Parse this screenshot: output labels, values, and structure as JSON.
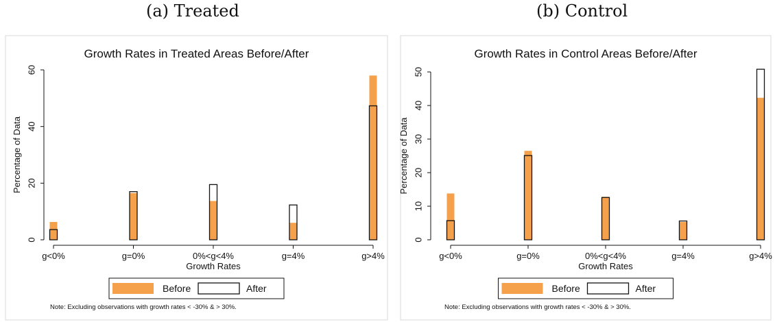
{
  "captions": [
    "(a) Treated",
    "(b) Control"
  ],
  "colors": {
    "before": "#f5a04a",
    "after_outline": "#111111",
    "panel_border": "#dadada",
    "axis": "#111111"
  },
  "chart_data": [
    {
      "type": "bar",
      "title": "Growth Rates in Treated Areas Before/After",
      "xlabel": "Growth Rates",
      "ylabel": "Percentage of Data",
      "categories": [
        "g<0%",
        "g=0%",
        "0%<g<4%",
        "g=4%",
        "g>4%"
      ],
      "yticks": [
        0,
        20,
        40,
        60
      ],
      "ylim": [
        0,
        60
      ],
      "series": [
        {
          "name": "Before",
          "values": [
            6.3,
            16.5,
            13.7,
            6.0,
            58.0
          ]
        },
        {
          "name": "After",
          "values": [
            3.6,
            17.0,
            19.5,
            12.3,
            47.3
          ]
        }
      ],
      "legend_position": "bottom",
      "note": "Note: Excluding observations with growth rates < -30% & > 30%."
    },
    {
      "type": "bar",
      "title": "Growth Rates in Control Areas Before/After",
      "xlabel": "Growth Rates",
      "ylabel": "Percentage of Data",
      "categories": [
        "g<0%",
        "g=0%",
        "0%<g<4%",
        "g=4%",
        "g>4%"
      ],
      "yticks": [
        0,
        10,
        20,
        30,
        40,
        50
      ],
      "ylim": [
        0,
        50
      ],
      "series": [
        {
          "name": "Before",
          "values": [
            13.8,
            26.5,
            12.8,
            5.3,
            42.3
          ]
        },
        {
          "name": "After",
          "values": [
            5.7,
            25.1,
            12.6,
            5.6,
            50.8
          ]
        }
      ],
      "legend_position": "bottom",
      "note": "Note: Excluding observations with growth rates < -30% & > 30%."
    }
  ]
}
